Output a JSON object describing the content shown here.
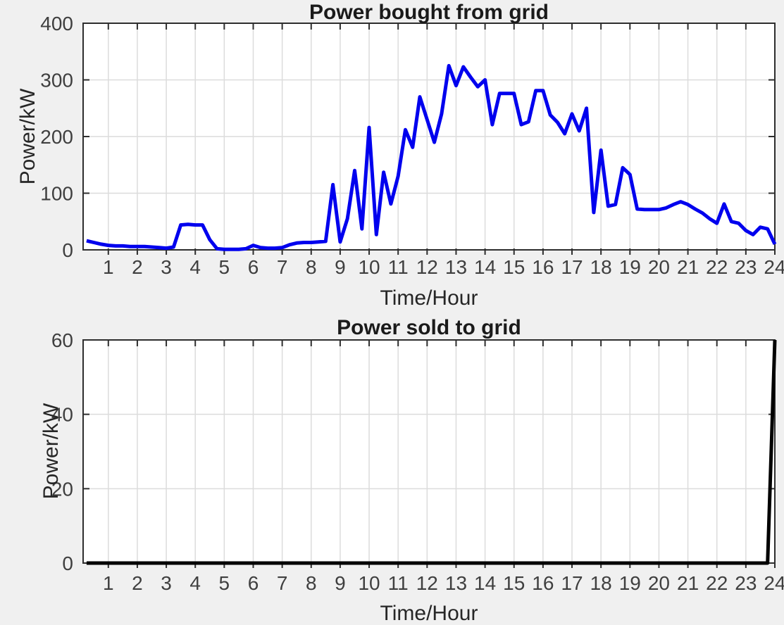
{
  "figure": {
    "background_color": "#f0f0f0",
    "plot_background_color": "#ffffff",
    "grid_color": "#dcdcdc",
    "axis_color": "#2e2e2e",
    "tick_text_color": "#3f3f3f"
  },
  "chart_data": [
    {
      "type": "line",
      "title": "Power bought from grid",
      "xlabel": "Time/Hour",
      "ylabel": "Power/kW",
      "xlim": [
        0.13,
        24
      ],
      "ylim": [
        0,
        400
      ],
      "x_ticks": [
        1,
        2,
        3,
        4,
        5,
        6,
        7,
        8,
        9,
        10,
        11,
        12,
        13,
        14,
        15,
        16,
        17,
        18,
        19,
        20,
        21,
        22,
        23,
        24
      ],
      "y_ticks": [
        0,
        100,
        200,
        300,
        400
      ],
      "grid": true,
      "legend": "none",
      "line_color": "#0000ee",
      "line_width": 5,
      "x": [
        0.25,
        0.5,
        0.75,
        1,
        1.25,
        1.5,
        1.75,
        2,
        2.25,
        2.5,
        2.75,
        3,
        3.25,
        3.5,
        3.75,
        4,
        4.25,
        4.5,
        4.75,
        5,
        5.25,
        5.5,
        5.75,
        6,
        6.25,
        6.5,
        6.75,
        7,
        7.25,
        7.5,
        7.75,
        8,
        8.25,
        8.5,
        8.75,
        9,
        9.25,
        9.5,
        9.75,
        10,
        10.25,
        10.5,
        10.75,
        11,
        11.25,
        11.5,
        11.75,
        12,
        12.25,
        12.5,
        12.75,
        13,
        13.25,
        13.5,
        13.75,
        14,
        14.25,
        14.5,
        14.75,
        15,
        15.25,
        15.5,
        15.75,
        16,
        16.25,
        16.5,
        16.75,
        17,
        17.25,
        17.5,
        17.75,
        18,
        18.25,
        18.5,
        18.75,
        19,
        19.25,
        19.5,
        19.75,
        20,
        20.25,
        20.5,
        20.75,
        21,
        21.25,
        21.5,
        21.75,
        22,
        22.25,
        22.5,
        22.75,
        23,
        23.25,
        23.5,
        23.75,
        24
      ],
      "y": [
        16,
        13,
        10,
        8,
        7,
        7,
        6,
        6,
        6,
        5,
        4,
        3,
        5,
        44,
        45,
        44,
        44,
        18,
        2,
        1,
        1,
        1,
        2,
        8,
        4,
        3,
        3,
        4,
        9,
        12,
        13,
        13,
        14,
        15,
        115,
        14,
        55,
        140,
        37,
        216,
        27,
        137,
        81,
        130,
        212,
        181,
        270,
        230,
        190,
        240,
        325,
        290,
        323,
        305,
        288,
        300,
        221,
        276,
        276,
        276,
        221,
        226,
        281,
        281,
        238,
        225,
        205,
        240,
        210,
        250,
        66,
        176,
        77,
        80,
        145,
        133,
        72,
        71,
        71,
        71,
        74,
        80,
        85,
        80,
        72,
        65,
        55,
        47,
        81,
        50,
        47,
        34,
        27,
        40,
        37,
        10
      ]
    },
    {
      "type": "line",
      "title": "Power sold to grid",
      "xlabel": "Time/Hour",
      "ylabel": "Power/kW",
      "xlim": [
        0.13,
        24
      ],
      "ylim": [
        0,
        60
      ],
      "x_ticks": [
        1,
        2,
        3,
        4,
        5,
        6,
        7,
        8,
        9,
        10,
        11,
        12,
        13,
        14,
        15,
        16,
        17,
        18,
        19,
        20,
        21,
        22,
        23,
        24
      ],
      "y_ticks": [
        0,
        20,
        40,
        60
      ],
      "grid": true,
      "legend": "none",
      "line_color": "#000000",
      "line_width": 5,
      "x": [
        0.25,
        0.5,
        0.75,
        1,
        1.25,
        1.5,
        1.75,
        2,
        2.25,
        2.5,
        2.75,
        3,
        3.25,
        3.5,
        3.75,
        4,
        4.25,
        4.5,
        4.75,
        5,
        5.25,
        5.5,
        5.75,
        6,
        6.25,
        6.5,
        6.75,
        7,
        7.25,
        7.5,
        7.75,
        8,
        8.25,
        8.5,
        8.75,
        9,
        9.25,
        9.5,
        9.75,
        10,
        10.25,
        10.5,
        10.75,
        11,
        11.25,
        11.5,
        11.75,
        12,
        12.25,
        12.5,
        12.75,
        13,
        13.25,
        13.5,
        13.75,
        14,
        14.25,
        14.5,
        14.75,
        15,
        15.25,
        15.5,
        15.75,
        16,
        16.25,
        16.5,
        16.75,
        17,
        17.25,
        17.5,
        17.75,
        18,
        18.25,
        18.5,
        18.75,
        19,
        19.25,
        19.5,
        19.75,
        20,
        20.25,
        20.5,
        20.75,
        21,
        21.25,
        21.5,
        21.75,
        22,
        22.25,
        22.5,
        22.75,
        23,
        23.25,
        23.5,
        23.75,
        24
      ],
      "y": [
        0,
        0,
        0,
        0,
        0,
        0,
        0,
        0,
        0,
        0,
        0,
        0,
        0,
        0,
        0,
        0,
        0,
        0,
        0,
        0,
        0,
        0,
        0,
        0,
        0,
        0,
        0,
        0,
        0,
        0,
        0,
        0,
        0,
        0,
        0,
        0,
        0,
        0,
        0,
        0,
        0,
        0,
        0,
        0,
        0,
        0,
        0,
        0,
        0,
        0,
        0,
        0,
        0,
        0,
        0,
        0,
        0,
        0,
        0,
        0,
        0,
        0,
        0,
        0,
        0,
        0,
        0,
        0,
        0,
        0,
        0,
        0,
        0,
        0,
        0,
        0,
        0,
        0,
        0,
        0,
        0,
        0,
        0,
        0,
        0,
        0,
        0,
        0,
        0,
        0,
        0,
        0,
        0,
        0,
        0,
        60
      ]
    }
  ]
}
